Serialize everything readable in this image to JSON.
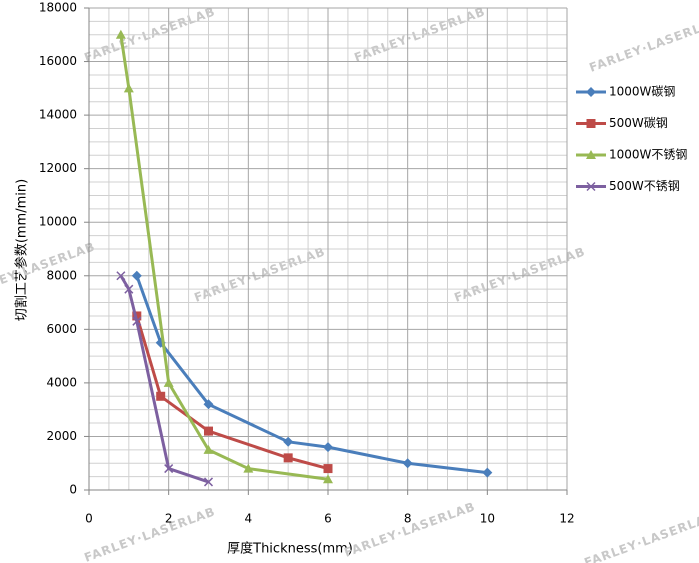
{
  "chart_data": {
    "type": "line",
    "x_label": "厚度Thickness(mm)",
    "y_label": "切割工艺参数(mm/min)",
    "watermark": "FARLEY·LASERLAB",
    "xlim": [
      0,
      12
    ],
    "xticks": [
      0,
      2,
      4,
      6,
      8,
      10,
      12
    ],
    "ylim": [
      0,
      18000
    ],
    "yticks": [
      0,
      2000,
      4000,
      6000,
      8000,
      10000,
      12000,
      14000,
      16000,
      18000
    ],
    "grid": true,
    "legend": "right",
    "series": [
      {
        "name": "1000W碳钢",
        "color": "#4a7ebb",
        "marker": "diamond",
        "x": [
          1.2,
          1.8,
          3,
          5,
          6,
          8,
          10
        ],
        "values": [
          8000,
          5500,
          3200,
          1800,
          1600,
          1000,
          650
        ]
      },
      {
        "name": "500W碳钢",
        "color": "#be4b48",
        "marker": "square",
        "x": [
          1.2,
          1.8,
          3,
          5,
          6
        ],
        "values": [
          6500,
          3500,
          2200,
          1200,
          800
        ]
      },
      {
        "name": "1000W不锈钢",
        "color": "#98b954",
        "marker": "triangle",
        "x": [
          0.8,
          1,
          2,
          3,
          4,
          6
        ],
        "values": [
          17000,
          15000,
          4000,
          1500,
          800,
          400
        ]
      },
      {
        "name": "500W不锈钢",
        "color": "#7d60a0",
        "marker": "x",
        "x": [
          0.8,
          1,
          1.2,
          2,
          3
        ],
        "values": [
          8000,
          7500,
          6300,
          800,
          300
        ]
      }
    ]
  }
}
